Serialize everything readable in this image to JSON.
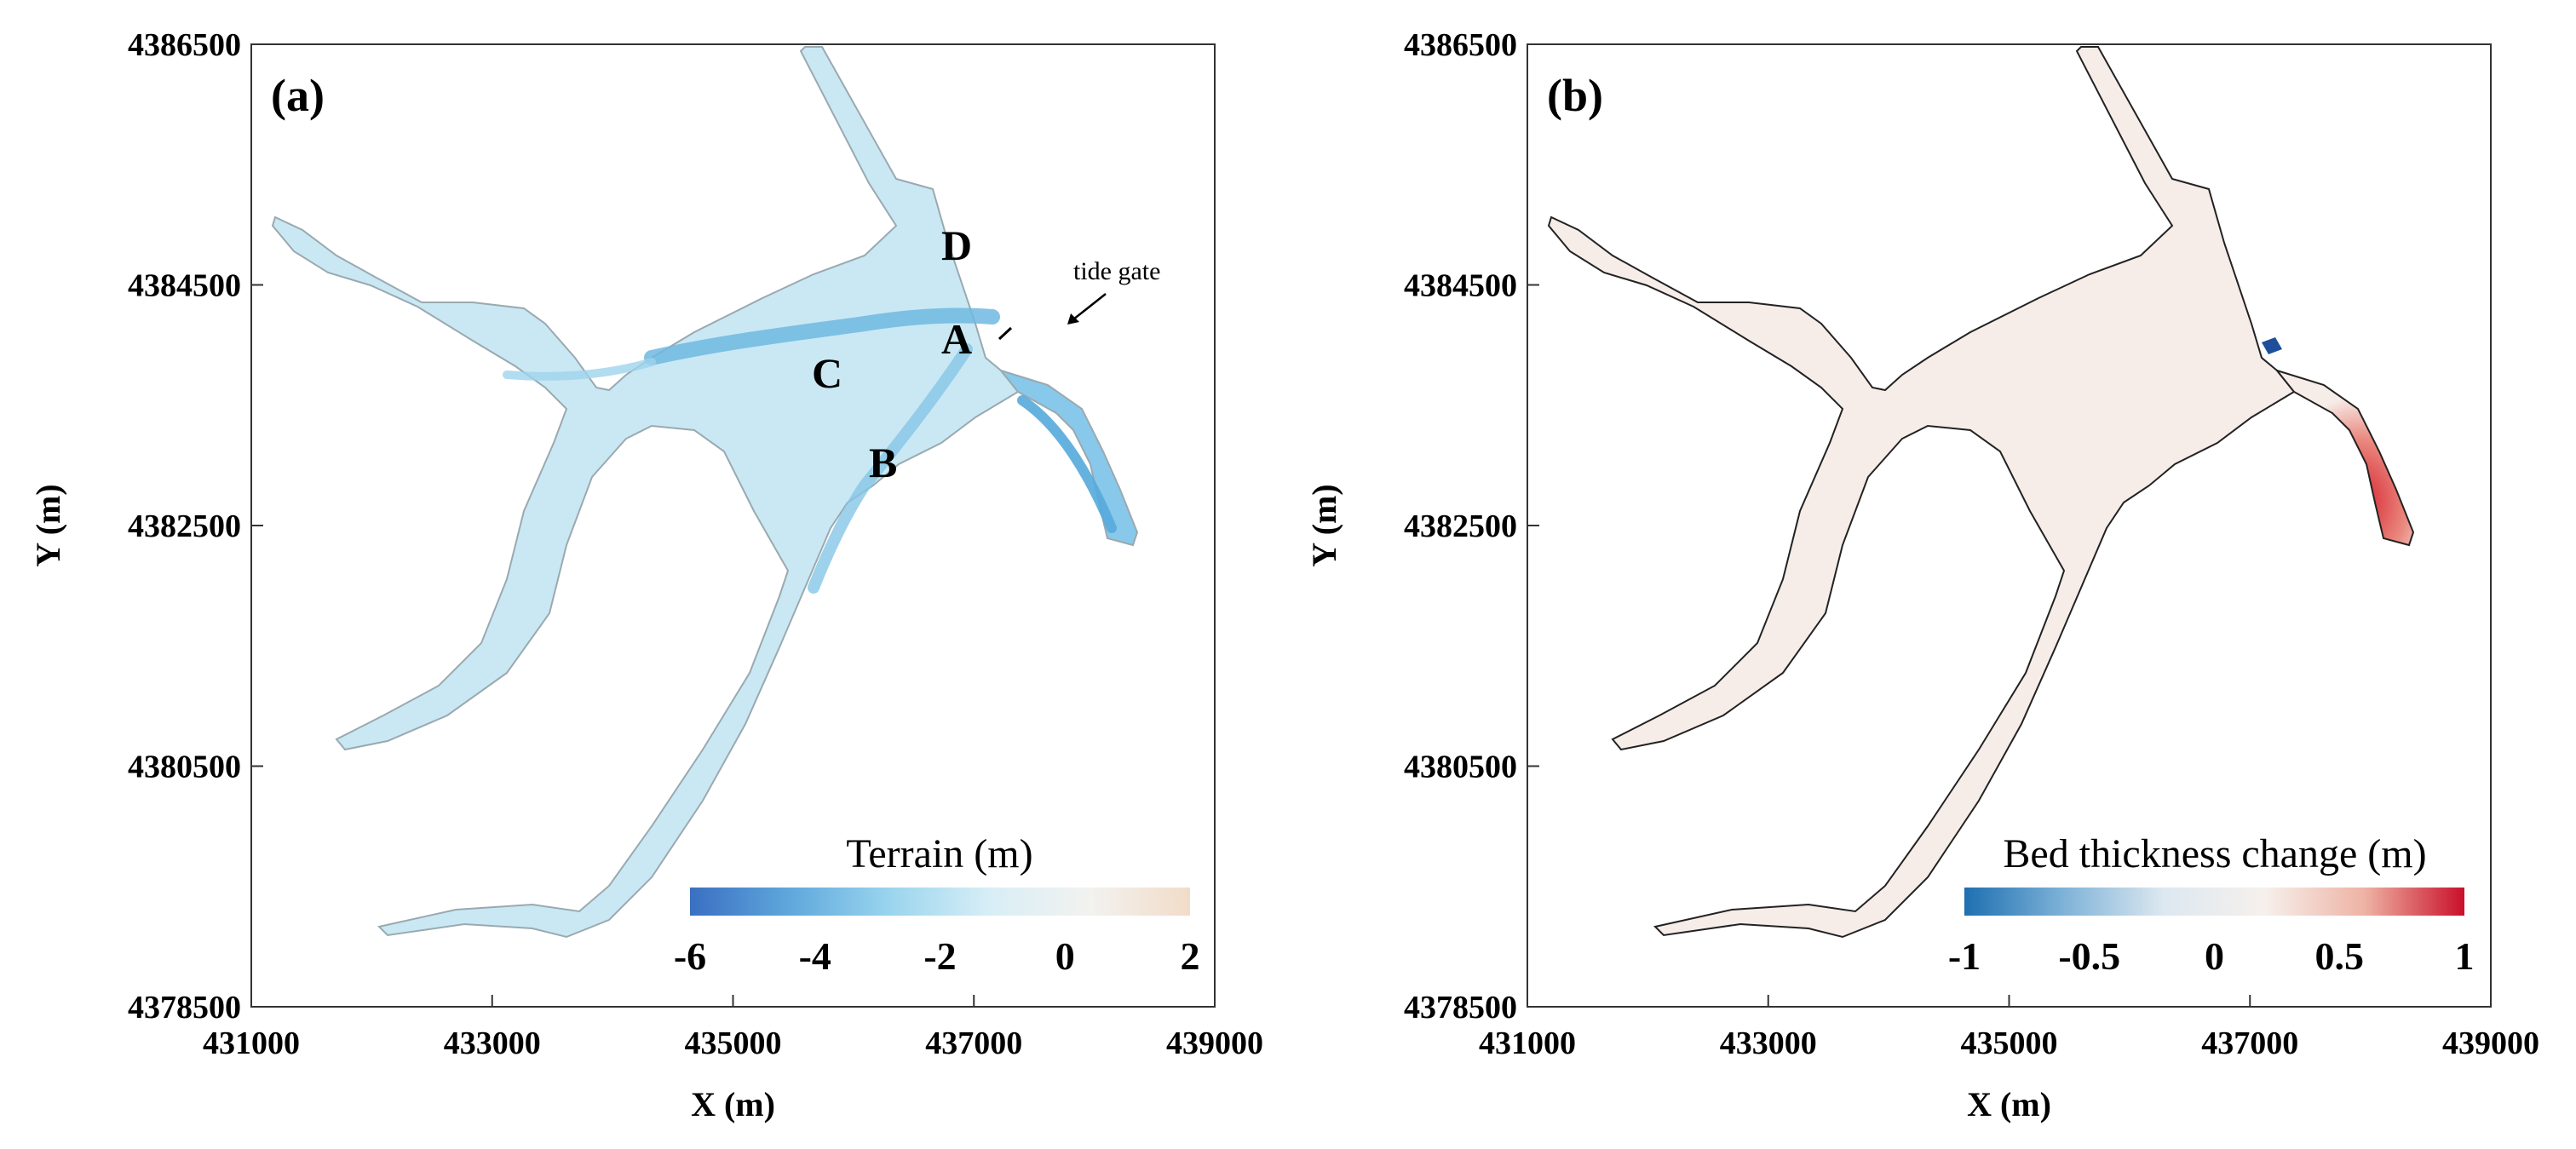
{
  "panels": [
    {
      "tag": "(a)",
      "colorbar": {
        "title": "Terrain (m)",
        "ticks": [
          "-6",
          "-4",
          "-2",
          "0",
          "2"
        ],
        "range": [
          -6,
          2
        ],
        "colors": [
          "#3a6fc2",
          "#5fa8dc",
          "#9ad5ee",
          "#d8eef6",
          "#f2f2ef",
          "#f2dcc8"
        ]
      },
      "sites": [
        "A",
        "B",
        "C",
        "D"
      ],
      "annotation": "tide gate",
      "fill_color": "#c9e8f4",
      "channel_color": "#6fb9e0"
    },
    {
      "tag": "(b)",
      "colorbar": {
        "title": "Bed thickness change (m)",
        "ticks": [
          "-1",
          "-0.5",
          "0",
          "0.5",
          "1"
        ],
        "range": [
          -1,
          1
        ],
        "colors": [
          "#1e6fb1",
          "#7fb3d8",
          "#dde8f0",
          "#f6f0ec",
          "#eeb3a4",
          "#c90f2a"
        ]
      },
      "fill_color": "#f6ece8",
      "deposit_color": "#d7202e"
    }
  ],
  "axes": {
    "xlabel": "X (m)",
    "ylabel": "Y (m)",
    "xlim": [
      431000,
      439000
    ],
    "ylim": [
      4378500,
      4386500
    ],
    "xticks": [
      "431000",
      "433000",
      "435000",
      "437000",
      "439000"
    ],
    "yticks": [
      "4378500",
      "4380500",
      "4382500",
      "4384500",
      "4386500"
    ]
  }
}
